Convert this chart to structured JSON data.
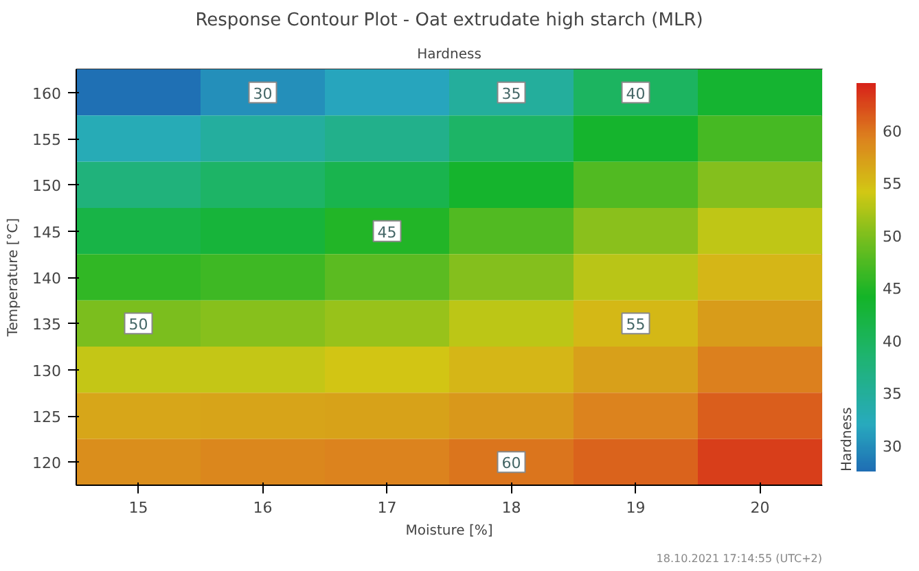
{
  "chart_data": {
    "type": "heatmap",
    "title": "Response Contour Plot - Oat extrudate high starch (MLR)",
    "subtitle": "Hardness",
    "xlabel": "Moisture [%]",
    "ylabel": "Temperature [°C]",
    "clabel": "Hardness",
    "categories": [
      "15",
      "16",
      "17",
      "18",
      "19",
      "20"
    ],
    "y_categories": [
      "160",
      "155",
      "150",
      "145",
      "140",
      "135",
      "130",
      "125",
      "120"
    ],
    "cells": [
      [
        27.7,
        30.0,
        31.6,
        34.8,
        39.7,
        43.4
      ],
      [
        32.6,
        34.6,
        36.2,
        39.3,
        43.8,
        46.9
      ],
      [
        37.5,
        39.3,
        41.1,
        43.8,
        47.5,
        50.2
      ],
      [
        41.8,
        42.8,
        44.9,
        47.5,
        50.6,
        53.1
      ],
      [
        45.8,
        46.5,
        48.1,
        50.2,
        52.9,
        55.4
      ],
      [
        49.9,
        50.4,
        51.3,
        53.0,
        55.3,
        57.4
      ],
      [
        53.4,
        53.5,
        54.3,
        55.5,
        57.1,
        59.3
      ],
      [
        56.6,
        56.8,
        56.9,
        57.7,
        59.2,
        61.2
      ],
      [
        58.3,
        59.0,
        59.2,
        59.9,
        61.0,
        63.0
      ]
    ],
    "clim": [
      27.5,
      64.5
    ],
    "cticks": [
      30,
      35,
      40,
      45,
      50,
      55,
      60
    ],
    "annotations": [
      "30",
      "35",
      "40",
      "45",
      "50",
      "55",
      "60",
      "18.10.2021 17:14:55 (UTC+2)"
    ]
  }
}
